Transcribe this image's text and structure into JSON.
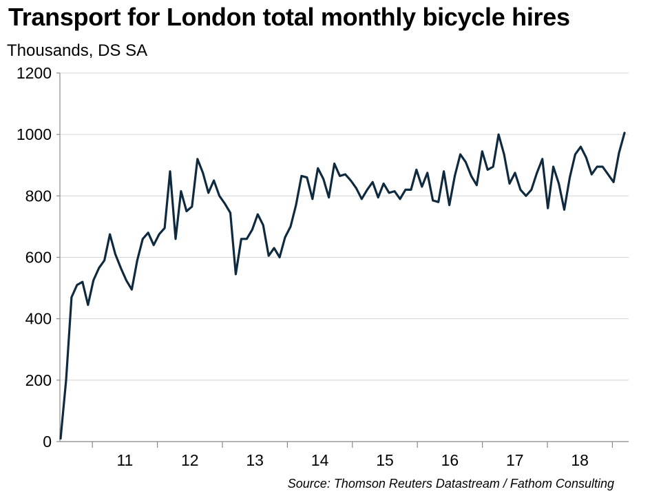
{
  "chart_data": {
    "type": "line",
    "title": "Transport for London total monthly bicycle hires",
    "subtitle": "Thousands, DS SA",
    "source": "Source: Thomson Reuters Datastream / Fathom Consulting",
    "ylim": [
      0,
      1200
    ],
    "yticks": [
      0,
      200,
      400,
      600,
      800,
      1000,
      1200
    ],
    "xlabels": [
      "11",
      "12",
      "13",
      "14",
      "15",
      "16",
      "17",
      "18"
    ],
    "grid": true,
    "line_color": "#0f2a3f",
    "series": [
      {
        "values": [
          10,
          200,
          470,
          510,
          520,
          445,
          525,
          565,
          590,
          675,
          610,
          565,
          525,
          495,
          590,
          660,
          680,
          640,
          675,
          695,
          880,
          660,
          815,
          750,
          765,
          920,
          875,
          810,
          850,
          800,
          775,
          745,
          545,
          660,
          660,
          690,
          740,
          705,
          605,
          630,
          600,
          665,
          700,
          770,
          865,
          860,
          790,
          890,
          855,
          795,
          905,
          865,
          870,
          850,
          825,
          790,
          820,
          845,
          795,
          840,
          810,
          815,
          790,
          820,
          820,
          885,
          830,
          875,
          785,
          780,
          880,
          770,
          865,
          935,
          910,
          865,
          835,
          945,
          885,
          895,
          1000,
          935,
          840,
          875,
          820,
          800,
          820,
          875,
          920,
          760,
          895,
          840,
          755,
          860,
          935,
          960,
          925,
          870,
          895,
          895,
          870,
          845,
          940,
          1005
        ]
      }
    ]
  }
}
